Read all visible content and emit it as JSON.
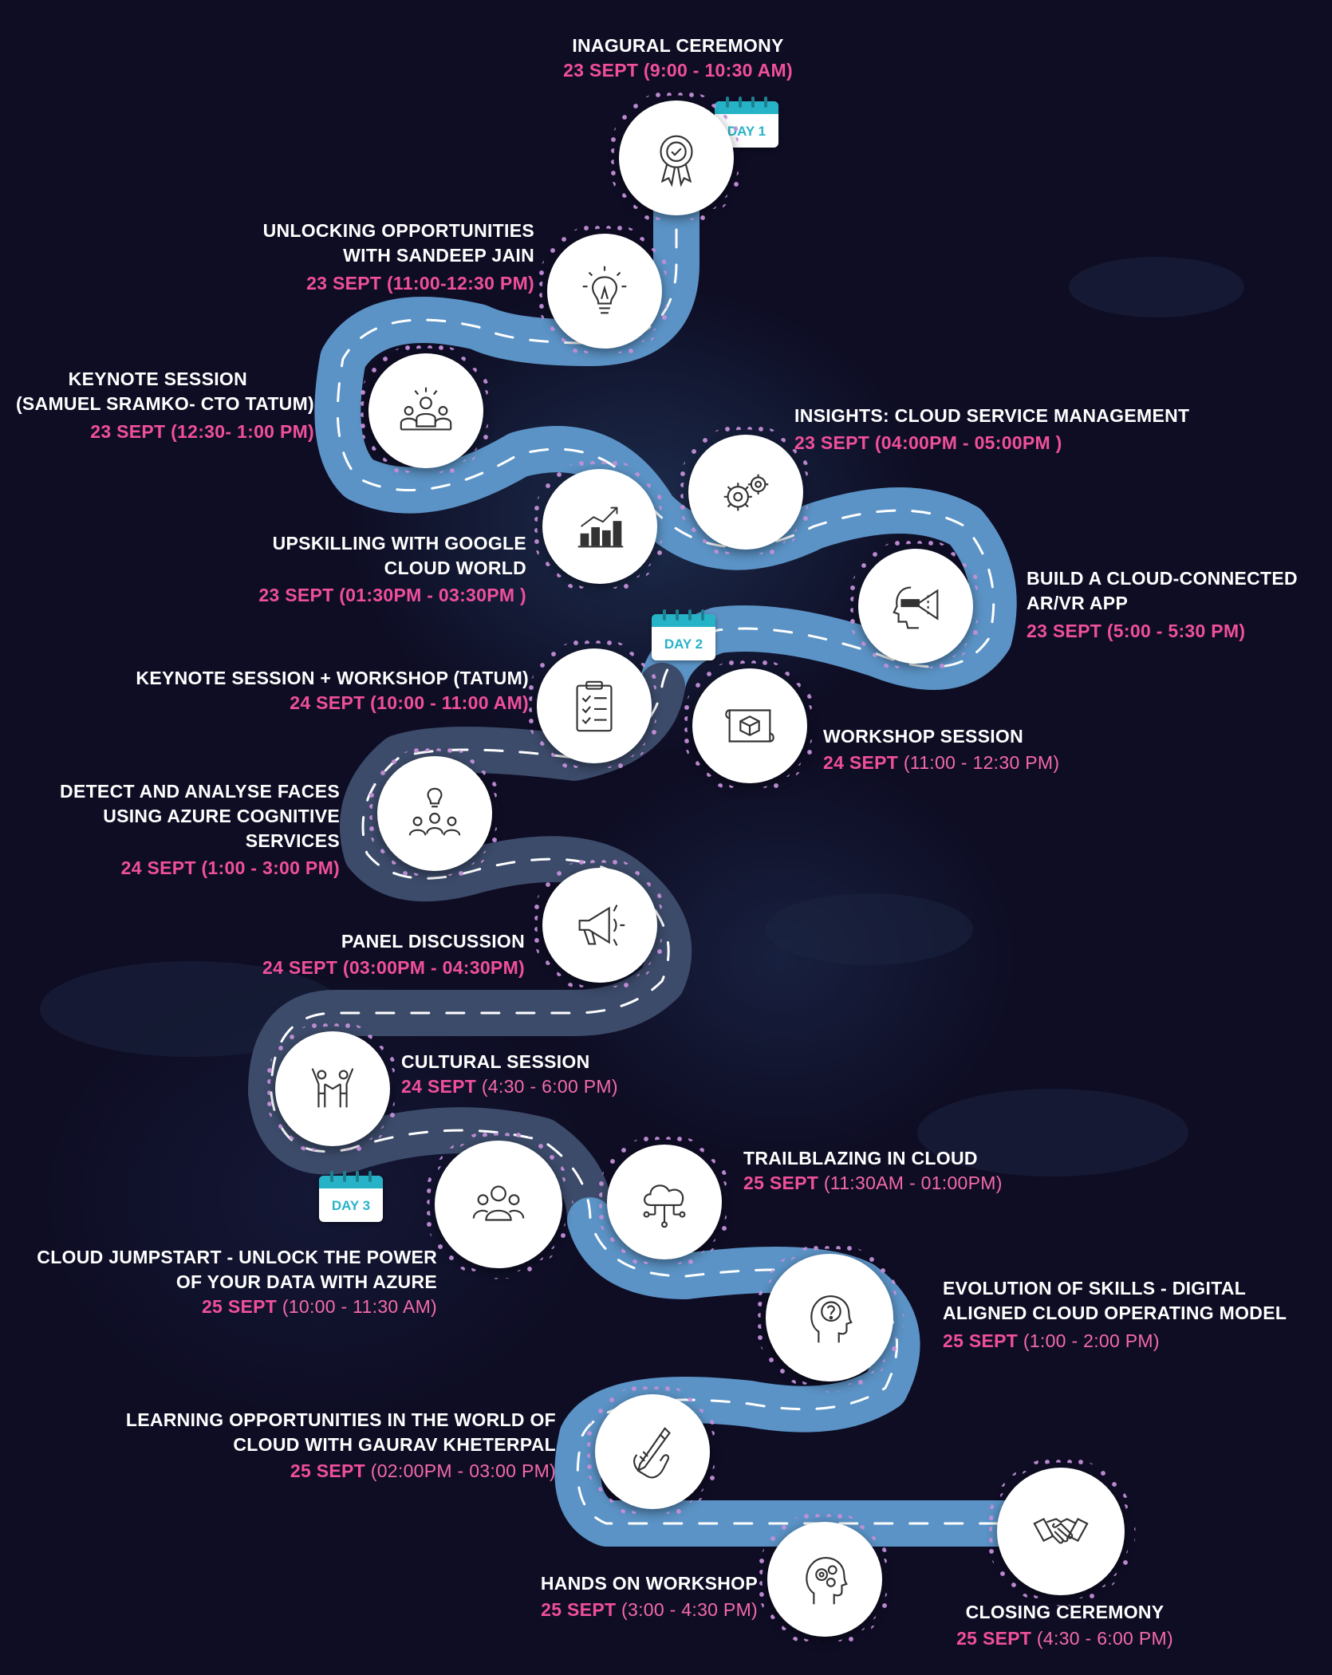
{
  "badges": {
    "day1": "DAY 1",
    "day2": "DAY 2",
    "day3": "DAY 3"
  },
  "events": [
    {
      "title": [
        "INAGURAL CEREMONY"
      ],
      "date": "23 SEPT",
      "time": " (9:00 - 10:30 AM)",
      "icon": "award-ribbon-icon"
    },
    {
      "title": [
        "UNLOCKING  OPPORTUNITIES",
        "WITH SANDEEP JAIN"
      ],
      "date": "23 SEPT",
      "time": " (11:00-12:30 PM)",
      "icon": "lightbulb-icon"
    },
    {
      "title": [
        "KEYNOTE SESSION",
        "(SAMUEL SRAMKO- CTO TATUM)"
      ],
      "date": "23 SEPT",
      "time": " (12:30- 1:00 PM)",
      "icon": "audience-icon"
    },
    {
      "title": [
        "INSIGHTS: CLOUD SERVICE MANAGEMENT"
      ],
      "date": "23 SEPT",
      "time": " (04:00PM - 05:00PM )",
      "icon": "gears-icon"
    },
    {
      "title": [
        "UPSKILLING WITH GOOGLE",
        "CLOUD WORLD"
      ],
      "date": "23 SEPT",
      "time": " (01:30PM - 03:30PM )",
      "icon": "growth-chart-icon"
    },
    {
      "title": [
        "BUILD A CLOUD-CONNECTED",
        "AR/VR APP"
      ],
      "date": "23 SEPT",
      "time": " (5:00 - 5:30 PM)",
      "icon": "vr-headset-icon"
    },
    {
      "title": [
        "KEYNOTE SESSION + WORKSHOP (TATUM)"
      ],
      "date": "24 SEPT",
      "time": " (10:00 - 11:00 AM)",
      "icon": "checklist-icon"
    },
    {
      "title": [
        "WORKSHOP  SESSION"
      ],
      "date": "24 SEPT",
      "time": " (11:00 - 12:30 PM)",
      "icon": "blueprint-icon"
    },
    {
      "title": [
        "DETECT AND ANALYSE FACES",
        "USING AZURE COGNITIVE",
        "SERVICES"
      ],
      "date": "24 SEPT",
      "time": " (1:00 - 3:00 PM)",
      "icon": "team-idea-icon"
    },
    {
      "title": [
        "PANEL DISCUSSION"
      ],
      "date": "24 SEPT",
      "time": " (03:00PM - 04:30PM)",
      "icon": "megaphone-icon"
    },
    {
      "title": [
        "CULTURAL SESSION"
      ],
      "date": "24 SEPT",
      "time": " (4:30 - 6:00  PM)",
      "icon": "people-celebrating-icon"
    },
    {
      "title": [
        "TRAILBLAZING IN CLOUD"
      ],
      "date": "25 SEPT",
      "time": " (11:30AM - 01:00PM)",
      "icon": "cloud-network-icon"
    },
    {
      "title": [
        "CLOUD JUMPSTART - UNLOCK THE POWER",
        "OF YOUR DATA WITH AZURE"
      ],
      "date": "25 SEPT",
      "time": " (10:00 - 11:30 AM)",
      "icon": "group-icon"
    },
    {
      "title": [
        "EVOLUTION OF SKILLS - DIGITAL",
        "ALIGNED CLOUD OPERATING MODEL"
      ],
      "date": "25 SEPT",
      "time": " (1:00 - 2:00 PM)",
      "icon": "head-question-icon"
    },
    {
      "title": [
        "LEARNING OPPORTUNITIES IN THE WORLD OF",
        "CLOUD WITH GAURAV KHETERPAL"
      ],
      "date": "25 SEPT",
      "time": " (02:00PM - 03:00 PM)",
      "icon": "hand-pencil-icon"
    },
    {
      "title": [
        "HANDS ON WORKSHOP"
      ],
      "date": "25 SEPT",
      "time": " (3:00 - 4:30 PM)",
      "icon": "head-gears-icon"
    },
    {
      "title": [
        "CLOSING CEREMONY"
      ],
      "date": "25 SEPT",
      "time": " (4:30 - 6:00 PM)",
      "icon": "handshake-icon"
    }
  ],
  "colors": {
    "road": "#5b93c6",
    "road_dark": "#3c4b6a",
    "dashes": "#ffffff",
    "date_pink": "#f04f9c",
    "badge_teal": "#27b3c7",
    "background": "#0e0d24"
  }
}
